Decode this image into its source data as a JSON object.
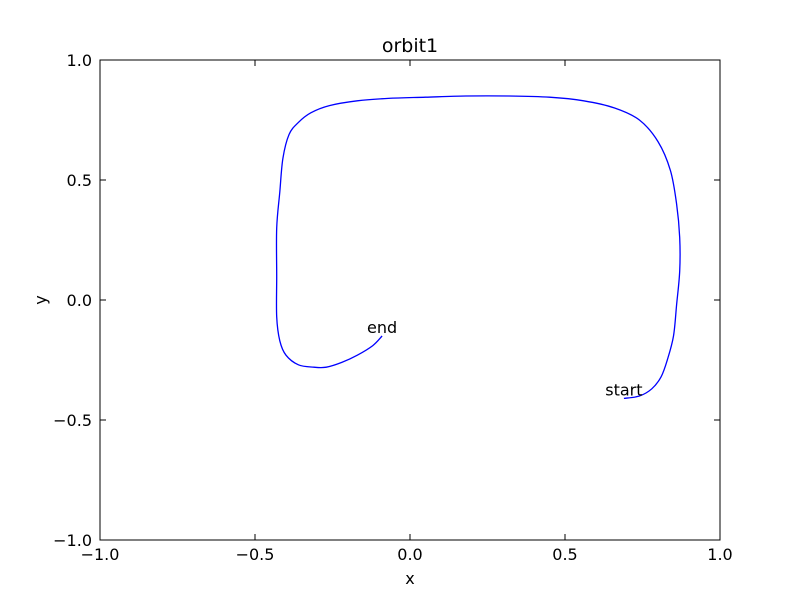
{
  "chart_data": {
    "type": "line",
    "title": "orbit1",
    "xlabel": "x",
    "ylabel": "y",
    "xlim": [
      -1.0,
      1.0
    ],
    "ylim": [
      -1.0,
      1.0
    ],
    "xticks": [
      "−1.0",
      "−0.5",
      "0.0",
      "0.5",
      "1.0"
    ],
    "yticks": [
      "−1.0",
      "−0.5",
      "0.0",
      "0.5",
      "1.0"
    ],
    "xtick_values": [
      -1.0,
      -0.5,
      0.0,
      0.5,
      1.0
    ],
    "ytick_values": [
      -1.0,
      -0.5,
      0.0,
      0.5,
      1.0
    ],
    "grid": false,
    "series": [
      {
        "color": "#0000ff",
        "x": [
          0.69,
          0.74,
          0.78,
          0.81,
          0.83,
          0.85,
          0.86,
          0.87,
          0.87,
          0.86,
          0.84,
          0.8,
          0.74,
          0.66,
          0.56,
          0.45,
          0.32,
          0.18,
          0.05,
          -0.07,
          -0.17,
          -0.26,
          -0.32,
          -0.36,
          -0.39,
          -0.41,
          -0.42,
          -0.43,
          -0.43,
          -0.43,
          -0.42,
          -0.4,
          -0.36,
          -0.31,
          -0.27,
          -0.22,
          -0.17,
          -0.12,
          -0.09
        ],
        "y": [
          -0.41,
          -0.4,
          -0.37,
          -0.32,
          -0.25,
          -0.15,
          -0.02,
          0.12,
          0.26,
          0.4,
          0.54,
          0.66,
          0.75,
          0.8,
          0.83,
          0.845,
          0.85,
          0.85,
          0.845,
          0.84,
          0.83,
          0.81,
          0.78,
          0.74,
          0.69,
          0.59,
          0.45,
          0.3,
          0.1,
          -0.07,
          -0.17,
          -0.23,
          -0.27,
          -0.28,
          -0.28,
          -0.26,
          -0.23,
          -0.19,
          -0.15
        ]
      }
    ],
    "annotations": [
      {
        "text": "start",
        "x": 0.69,
        "y": -0.41
      },
      {
        "text": "end",
        "x": -0.09,
        "y": -0.15
      }
    ]
  }
}
